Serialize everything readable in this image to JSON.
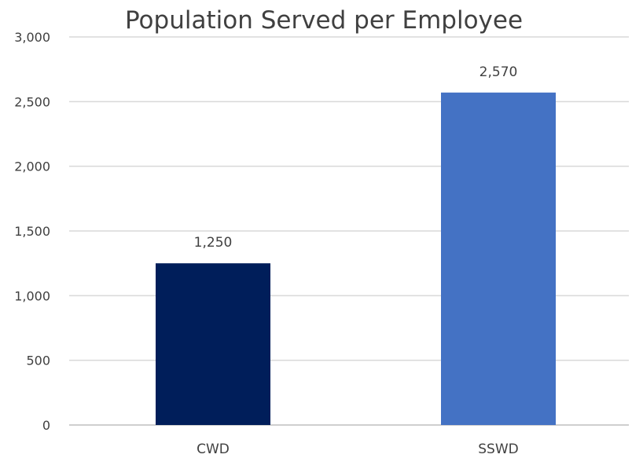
{
  "chart_data": {
    "type": "bar",
    "title": "Population Served per Employee",
    "xlabel": "",
    "ylabel": "",
    "categories": [
      "CWD",
      "SSWD"
    ],
    "values": [
      1250,
      2570
    ],
    "value_labels": [
      "1,250",
      "2,570"
    ],
    "bar_colors": [
      "#001e5a",
      "#4472c4"
    ],
    "ylim": [
      0,
      3000
    ],
    "yticks": [
      0,
      500,
      1000,
      1500,
      2000,
      2500,
      3000
    ],
    "ytick_labels": [
      "0",
      "500",
      "1,000",
      "1,500",
      "2,000",
      "2,500",
      "3,000"
    ],
    "grid": true,
    "legend": "none"
  }
}
